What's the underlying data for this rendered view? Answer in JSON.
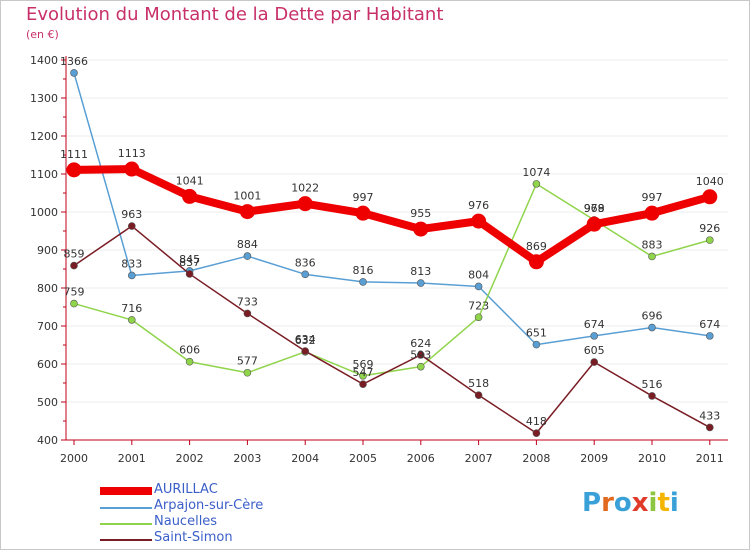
{
  "title": "Evolution du Montant de la Dette par Habitant",
  "subtitle": "(en €)",
  "colors": {
    "title": "#c8306a",
    "axis": "#c0001a",
    "label": "#333333",
    "legend_text": "#3b5fc8"
  },
  "logo": {
    "letters": [
      "P",
      "r",
      "o",
      "x",
      "i",
      "t",
      "i"
    ],
    "colors": [
      "#3aa0d8",
      "#e26a1e",
      "#3aa0d8",
      "#e03a2a",
      "#8cc63f",
      "#f4b400",
      "#3aa0d8"
    ]
  },
  "chart_data": {
    "type": "line",
    "title": "Evolution du Montant de la Dette par Habitant",
    "ylabel": "(en €)",
    "xlabel": "",
    "ylim": [
      400,
      1400
    ],
    "yticks": [
      400,
      500,
      600,
      700,
      800,
      900,
      1000,
      1100,
      1200,
      1300,
      1400
    ],
    "categories": [
      "2000",
      "2001",
      "2002",
      "2003",
      "2004",
      "2005",
      "2006",
      "2007",
      "2008",
      "2009",
      "2010",
      "2011"
    ],
    "series": [
      {
        "name": "AURILLAC",
        "color": "#ee0000",
        "width": 8,
        "marker": 7,
        "values": [
          1111,
          1113,
          1041,
          1001,
          1022,
          997,
          955,
          976,
          869,
          968,
          997,
          1040
        ]
      },
      {
        "name": "Arpajon-sur-Cère",
        "color": "#5a9fd4",
        "width": 1.5,
        "marker": 3.5,
        "values": [
          1366,
          833,
          845,
          884,
          836,
          816,
          813,
          804,
          651,
          674,
          696,
          674
        ]
      },
      {
        "name": "Naucelles",
        "color": "#8fd44a",
        "width": 1.5,
        "marker": 3.5,
        "values": [
          759,
          716,
          606,
          577,
          632,
          569,
          593,
          723,
          1074,
          979,
          883,
          926
        ]
      },
      {
        "name": "Saint-Simon",
        "color": "#7a1c24",
        "width": 1.5,
        "marker": 3.5,
        "values": [
          859,
          963,
          837,
          733,
          634,
          547,
          624,
          518,
          418,
          605,
          516,
          433
        ]
      }
    ],
    "legend_position": "bottom-left"
  }
}
